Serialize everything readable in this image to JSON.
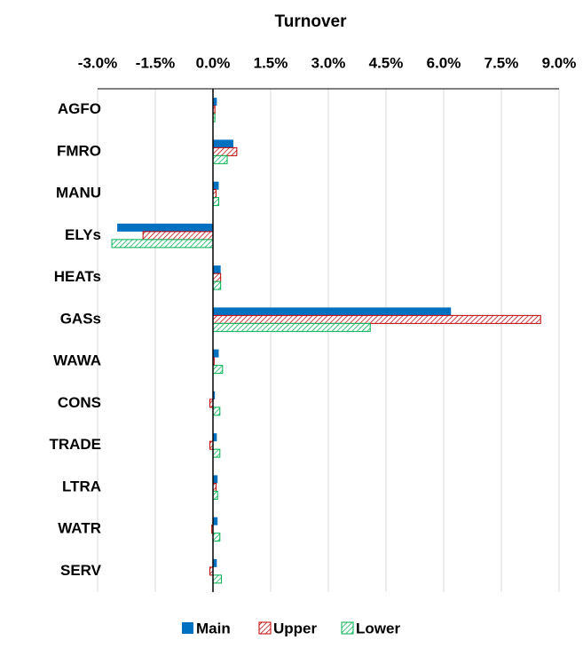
{
  "chart_data": {
    "type": "hbar",
    "title": "Turnover",
    "categories": [
      "AGFO",
      "FMRO",
      "MANU",
      "ELYs",
      "HEATs",
      "GASs",
      "WAWA",
      "CONS",
      "TRADE",
      "LTRA",
      "WATR",
      "SERV"
    ],
    "series": [
      {
        "name": "Main",
        "color": "#0070c0",
        "hatch": false,
        "values": [
          0.1,
          0.53,
          0.15,
          -2.49,
          0.2,
          6.19,
          0.15,
          0.05,
          0.1,
          0.12,
          0.12,
          0.1
        ]
      },
      {
        "name": "Upper",
        "color": "#c00000",
        "hatch": true,
        "values": [
          0.05,
          0.62,
          0.08,
          -1.82,
          0.2,
          8.52,
          0.03,
          -0.08,
          -0.08,
          0.08,
          -0.03,
          -0.08
        ]
      },
      {
        "name": "Lower",
        "color": "#00b050",
        "hatch": true,
        "values": [
          0.05,
          0.37,
          0.15,
          -2.63,
          0.2,
          4.09,
          0.25,
          0.18,
          0.18,
          0.12,
          0.18,
          0.22
        ]
      }
    ],
    "xlim": [
      -3.0,
      9.0
    ],
    "xticks": [
      {
        "value": -3.0,
        "label": "-3.0%"
      },
      {
        "value": -1.5,
        "label": "-1.5%"
      },
      {
        "value": 0.0,
        "label": "0.0%"
      },
      {
        "value": 1.5,
        "label": "1.5%"
      },
      {
        "value": 3.0,
        "label": "3.0%"
      },
      {
        "value": 4.5,
        "label": "4.5%"
      },
      {
        "value": 6.0,
        "label": "6.0%"
      },
      {
        "value": 7.5,
        "label": "7.5%"
      },
      {
        "value": 9.0,
        "label": "9.0%"
      }
    ],
    "grid": true,
    "legend": "bottom"
  }
}
